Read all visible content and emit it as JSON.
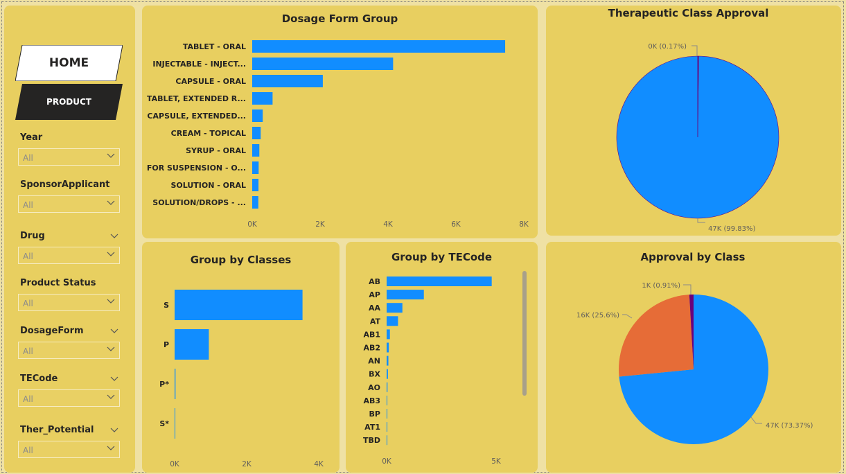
{
  "nav": {
    "home_label": "HOME",
    "product_label": "PRODUCT"
  },
  "slicers": [
    {
      "label": "Year",
      "value": "All",
      "has_top_chevron": false
    },
    {
      "label": "SponsorApplicant",
      "value": "All",
      "has_top_chevron": false
    },
    {
      "label": "Drug",
      "value": "All",
      "has_top_chevron": true
    },
    {
      "label": "Product Status",
      "value": "All",
      "has_top_chevron": false
    },
    {
      "label": "DosageForm",
      "value": "All",
      "has_top_chevron": true
    },
    {
      "label": "TECode",
      "value": "All",
      "has_top_chevron": true
    },
    {
      "label": "Ther_Potential",
      "value": "All",
      "has_top_chevron": true
    }
  ],
  "colors": {
    "background": "#efe1a4",
    "panel": "#e8cf60",
    "bar": "#118dff",
    "pie_blue": "#118dff",
    "pie_orange": "#e66c37",
    "pie_purple": "#6b007b",
    "home_bg": "#ffffff",
    "product_bg": "#252423"
  },
  "chart_data": [
    {
      "id": "dosage",
      "type": "bar",
      "orientation": "horizontal",
      "title": "Dosage Form Group",
      "categories": [
        "TABLET - ORAL",
        "INJECTABLE - INJECT...",
        "CAPSULE - ORAL",
        "TABLET, EXTENDED R...",
        "CAPSULE, EXTENDED...",
        "CREAM - TOPICAL",
        "SYRUP - ORAL",
        "FOR SUSPENSION - O...",
        "SOLUTION - ORAL",
        "SOLUTION/DROPS - ..."
      ],
      "values": [
        7450,
        4150,
        2080,
        600,
        310,
        250,
        210,
        190,
        185,
        180
      ],
      "xlim": [
        0,
        8000
      ],
      "ticks": [
        "0K",
        "2K",
        "4K",
        "6K",
        "8K"
      ],
      "tick_values": [
        0,
        2000,
        4000,
        6000,
        8000
      ]
    },
    {
      "id": "classes",
      "type": "bar",
      "orientation": "horizontal",
      "title": "Group by Classes",
      "categories": [
        "S",
        "P",
        "P*",
        "S*"
      ],
      "values": [
        3550,
        950,
        25,
        15
      ],
      "xlim": [
        0,
        4000
      ],
      "ticks": [
        "0K",
        "2K",
        "4K"
      ],
      "tick_values": [
        0,
        2000,
        4000
      ]
    },
    {
      "id": "tecode",
      "type": "bar",
      "orientation": "horizontal",
      "title": "Group by TECode",
      "categories": [
        "AB",
        "AP",
        "AA",
        "AT",
        "AB1",
        "AB2",
        "AN",
        "BX",
        "AO",
        "AB3",
        "BP",
        "AT1",
        "TBD"
      ],
      "values": [
        4800,
        1700,
        720,
        520,
        150,
        100,
        80,
        60,
        40,
        30,
        25,
        20,
        15
      ],
      "xlim": [
        0,
        5000
      ],
      "ticks": [
        "0K",
        "5K"
      ],
      "tick_values": [
        0,
        5000
      ]
    },
    {
      "id": "therapeutic",
      "type": "pie",
      "title": "Therapeutic Class Approval",
      "slices": [
        {
          "label": "47K (99.83%)",
          "value": 99.83,
          "color": "#118dff"
        },
        {
          "label": "0K (0.17%)",
          "value": 0.17,
          "color": "#6b007b"
        }
      ]
    },
    {
      "id": "approval",
      "type": "pie",
      "title": "Approval by Class",
      "slices": [
        {
          "label": "47K (73.37%)",
          "value": 73.37,
          "color": "#118dff"
        },
        {
          "label": "16K (25.6%)",
          "value": 25.6,
          "color": "#e66c37"
        },
        {
          "label": "1K (0.91%)",
          "value": 0.91,
          "color": "#6b007b"
        }
      ]
    }
  ]
}
